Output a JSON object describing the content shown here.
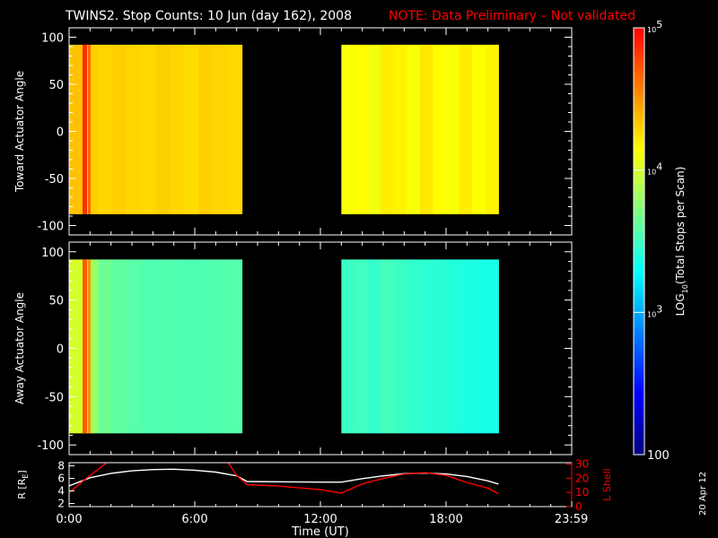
{
  "title": {
    "main": "TWINS2. Stop Counts: 10 Jun (day 162), 2008",
    "note": "NOTE: Data Preliminary – Not validated"
  },
  "date_stamp": "20 Apr 12",
  "colors": {
    "background": "#000000",
    "axes": "#ffffff",
    "note": "#ff0000",
    "r_line": "#ffffff",
    "lshell_line": "#ff0000"
  },
  "colorbar": {
    "label": "LOG10(Total Stops per Scan)",
    "label_main": "LOG",
    "label_sub": "10",
    "label_rest": "(Total Stops per Scan)",
    "scale": "log",
    "range": [
      100,
      100000
    ],
    "ticks": [
      {
        "value": 100000,
        "base": "10",
        "exp": "5"
      },
      {
        "value": 10000,
        "base": "10",
        "exp": "4"
      },
      {
        "value": 1000,
        "base": "10",
        "exp": "3"
      },
      {
        "value": 100,
        "base": "100",
        "exp": ""
      }
    ],
    "stops": [
      "#000080",
      "#0000ff",
      "#0080ff",
      "#00ffff",
      "#80ff80",
      "#ffff00",
      "#ff8000",
      "#ff0000"
    ]
  },
  "chart_data": [
    {
      "type": "heatmap",
      "name": "toward",
      "ylabel": "Toward Actuator Angle",
      "ylim": [
        -110,
        110
      ],
      "yticks": [
        100,
        50,
        0,
        -50,
        -100
      ],
      "xlim_hours": [
        0,
        24
      ],
      "angle_range": [
        -88,
        92
      ],
      "segments": [
        {
          "start": "0:00",
          "end": "8:15",
          "start_h": 0.0,
          "end_h": 8.25,
          "edge_log": 4.85,
          "log_counts": [
            4.35,
            4.3,
            4.28,
            4.3,
            4.28,
            4.27,
            4.3,
            4.28,
            4.26,
            4.3,
            4.28,
            4.27
          ]
        },
        {
          "start": "13:00",
          "end": "20:30",
          "start_h": 13.0,
          "end_h": 20.5,
          "edge_log": null,
          "log_counts": [
            4.12,
            4.15,
            4.1,
            4.2,
            4.18,
            4.12,
            4.22,
            4.15,
            4.12,
            4.2,
            4.14,
            4.18
          ]
        }
      ]
    },
    {
      "type": "heatmap",
      "name": "away",
      "ylabel": "Away Actuator Angle",
      "ylim": [
        -110,
        110
      ],
      "yticks": [
        100,
        50,
        0,
        -50,
        -100
      ],
      "xlim_hours": [
        0,
        24
      ],
      "angle_range": [
        -88,
        92
      ],
      "segments": [
        {
          "start": "0:00",
          "end": "8:15",
          "start_h": 0.0,
          "end_h": 8.25,
          "edge_log": 4.7,
          "log_counts": [
            4.0,
            3.8,
            3.65,
            3.6,
            3.58,
            3.55,
            3.56,
            3.55,
            3.54,
            3.55,
            3.56,
            3.57
          ]
        },
        {
          "start": "13:00",
          "end": "20:30",
          "start_h": 13.0,
          "end_h": 20.5,
          "edge_log": null,
          "log_counts": [
            3.48,
            3.5,
            3.46,
            3.52,
            3.48,
            3.45,
            3.43,
            3.42,
            3.4,
            3.38,
            3.37,
            3.36
          ]
        }
      ]
    },
    {
      "type": "line",
      "name": "orbit",
      "xlabel": "Time (UT)",
      "xticks": [
        "0:00",
        "6:00",
        "12:00",
        "18:00",
        "23:59"
      ],
      "xtick_hours": [
        0,
        6,
        12,
        18,
        23.983
      ],
      "left_axis": {
        "label": "R [RE]",
        "label_main": "R [R",
        "label_sub": "E",
        "label_end": "]",
        "ylim": [
          1.5,
          8.5
        ],
        "ticks": [
          2,
          4,
          6,
          8
        ]
      },
      "right_axis": {
        "label": "L Shell",
        "ylim": [
          0,
          31
        ],
        "ticks": [
          0,
          10,
          20,
          30
        ]
      },
      "series": [
        {
          "axis": "left",
          "x": [
            0,
            1,
            2,
            3,
            4,
            5,
            6,
            7,
            8,
            8.5,
            10,
            12,
            13,
            14,
            15,
            16,
            17,
            18,
            19,
            20,
            20.5
          ],
          "y": [
            4.8,
            6.1,
            6.8,
            7.2,
            7.4,
            7.45,
            7.3,
            7.0,
            6.4,
            5.5,
            5.45,
            5.4,
            5.4,
            5.95,
            6.4,
            6.75,
            6.85,
            6.7,
            6.3,
            5.6,
            5.1
          ]
        },
        {
          "axis": "right",
          "segments": [
            {
              "x": [
                0,
                1.0,
                1.8
              ],
              "y": [
                10,
                22,
                31
              ]
            },
            {
              "x": [
                7.6,
                8.0,
                8.5,
                10,
                12,
                13,
                14,
                15,
                16,
                17,
                18,
                19,
                20,
                20.5
              ],
              "y": [
                31,
                22,
                15.5,
                14.5,
                12,
                9.5,
                16,
                20,
                23,
                24,
                22,
                17,
                13,
                9
              ]
            }
          ]
        }
      ]
    }
  ]
}
